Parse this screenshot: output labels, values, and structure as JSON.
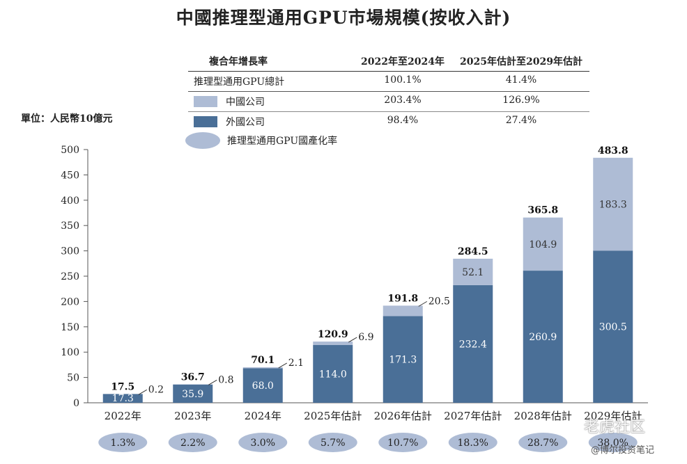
{
  "title": "中國推理型通用GPU市場規模(按收入計)",
  "unit_label": "單位：人民幣10億元",
  "cagr_table": {
    "header": [
      "複合年增長率",
      "2022年至2024年",
      "2025年估計至2029年估計"
    ],
    "rows": [
      {
        "label": "推理型通用GPU總計",
        "v1": "100.1%",
        "v2": "41.4%"
      },
      {
        "label": "中國公司",
        "v1": "203.4%",
        "v2": "126.9%",
        "swatch": "china"
      },
      {
        "label": "外國公司",
        "v1": "98.4%",
        "v2": "27.4%",
        "swatch": "foreign"
      }
    ]
  },
  "localization_legend": "推理型通用GPU國產化率",
  "colors": {
    "china": "#aebcd5",
    "foreign": "#4a6f97",
    "ellipse": "#aebcd5"
  },
  "chart_data": {
    "type": "bar",
    "stacked": true,
    "categories": [
      "2022年",
      "2023年",
      "2024年",
      "2025年估計",
      "2026年估計",
      "2027年估計",
      "2028年估計",
      "2029年估計"
    ],
    "series": [
      {
        "name": "外國公司",
        "values": [
          17.3,
          35.9,
          68.0,
          114.0,
          171.3,
          232.4,
          260.9,
          300.5
        ],
        "labels": [
          "17.3",
          "35.9",
          "68.0",
          "114.0",
          "171.3",
          "232.4",
          "260.9",
          "300.5"
        ]
      },
      {
        "name": "中國公司",
        "values": [
          0.2,
          0.8,
          2.1,
          6.9,
          20.5,
          52.1,
          104.9,
          183.3
        ],
        "labels": [
          "0.2",
          "0.8",
          "2.1",
          "6.9",
          "20.5",
          "52.1",
          "104.9",
          "183.3"
        ]
      }
    ],
    "totals": [
      "17.5",
      "36.7",
      "70.1",
      "120.9",
      "191.8",
      "284.5",
      "365.8",
      "483.8"
    ],
    "localization_rates": [
      "1.3%",
      "2.2%",
      "3.0%",
      "5.7%",
      "10.7%",
      "18.3%",
      "28.7%",
      "38.0%"
    ],
    "ylim": [
      0,
      500
    ],
    "yticks": [
      0,
      50,
      100,
      150,
      200,
      250,
      300,
      350,
      400,
      450,
      500
    ],
    "title": "中國推理型通用GPU市場規模(按收入計)",
    "ylabel": "單位：人民幣10億元"
  },
  "watermark": {
    "line1": "老虎社区",
    "line2": "@博尔投资笔记"
  }
}
